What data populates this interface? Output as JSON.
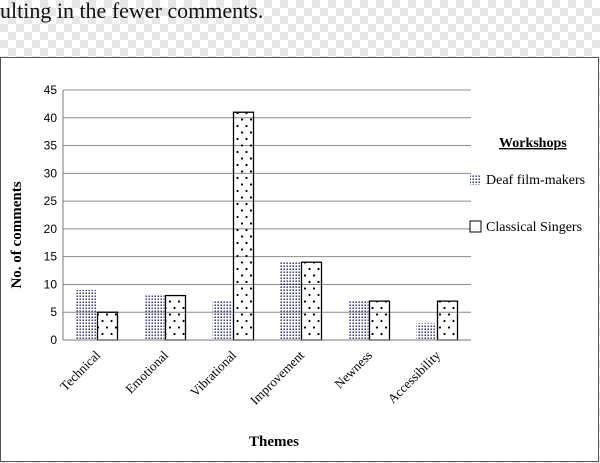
{
  "caption": "ulting in the fewer comments.",
  "chart_data": {
    "type": "bar",
    "categories": [
      "Technical",
      "Emotional",
      "Vibrational",
      "Improvement",
      "Newness",
      "Accessibility"
    ],
    "series": [
      {
        "name": "Deaf film-makers",
        "values": [
          9,
          8,
          7,
          14,
          7,
          3
        ],
        "pattern": "dense-dots",
        "color": "#1a1a6e"
      },
      {
        "name": "Classical Singers",
        "values": [
          5,
          8,
          41,
          14,
          7,
          7
        ],
        "pattern": "sparse-dots",
        "color": "#000000"
      }
    ],
    "xlabel": "Themes",
    "ylabel": "No. of comments",
    "ylim": [
      0,
      45
    ],
    "yticks": [
      0,
      5,
      10,
      15,
      20,
      25,
      30,
      35,
      40,
      45
    ],
    "grid": true,
    "legend": {
      "title": "Workshops",
      "position": "right"
    }
  }
}
